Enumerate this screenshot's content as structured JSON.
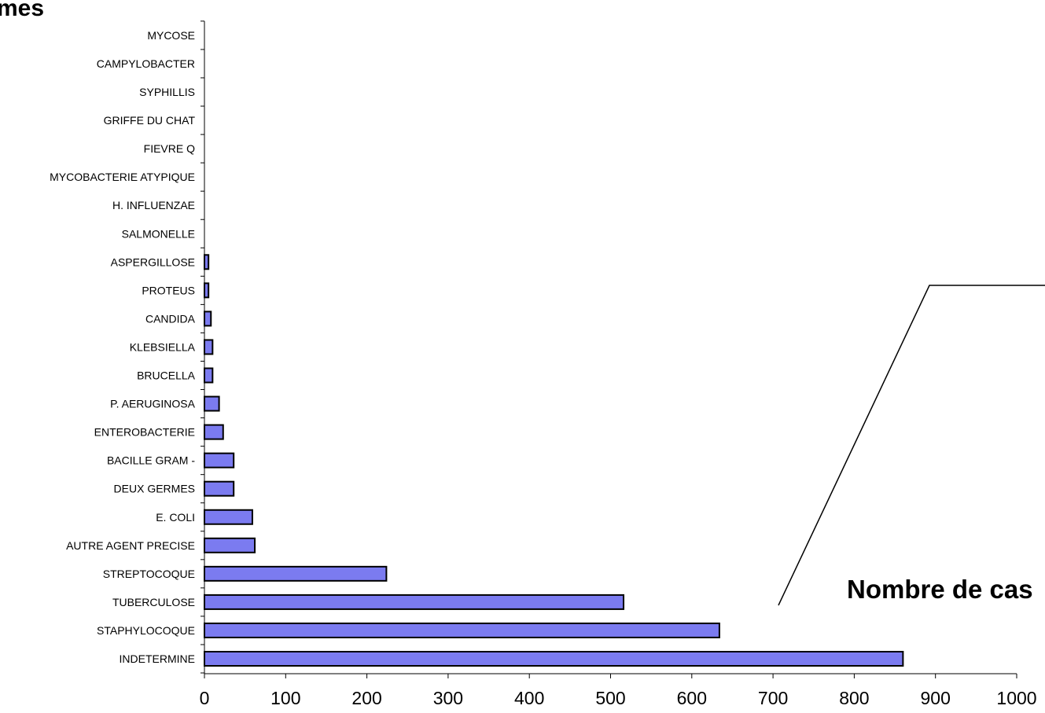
{
  "chart_data": {
    "type": "bar",
    "orientation": "horizontal",
    "title": "mes",
    "xlabel": "Nombre de cas",
    "ylabel": "",
    "xlim": [
      0,
      1000
    ],
    "xticks": [
      "0",
      "100",
      "200",
      "300",
      "400",
      "500",
      "600",
      "700",
      "800",
      "900",
      "1000"
    ],
    "categories": [
      "INDETERMINE",
      "STAPHYLOCOQUE",
      "TUBERCULOSE",
      "STREPTOCOQUE",
      "AUTRE AGENT PRECISE",
      "E. COLI",
      "DEUX GERMES",
      "BACILLE GRAM -",
      "ENTEROBACTERIE",
      "P. AERUGINOSA",
      "BRUCELLA",
      "KLEBSIELLA",
      "CANDIDA",
      "PROTEUS",
      "ASPERGILLOSE",
      "SALMONELLE",
      "H. INFLUENZAE",
      "MYCOBACTERIE ATYPIQUE",
      "FIEVRE Q",
      "GRIFFE DU CHAT",
      "SYPHILLIS",
      "CAMPYLOBACTER",
      "MYCOSE"
    ],
    "values": [
      860,
      634,
      516,
      224,
      62,
      59,
      36,
      36,
      23,
      18,
      10,
      10,
      8,
      5,
      5,
      0,
      0,
      0,
      0,
      0,
      0,
      0,
      0
    ],
    "colors": {
      "bar_fill": "#7b7bf0",
      "bar_stroke": "#000000",
      "axis": "#000000"
    },
    "grid": false,
    "legend": "none"
  }
}
